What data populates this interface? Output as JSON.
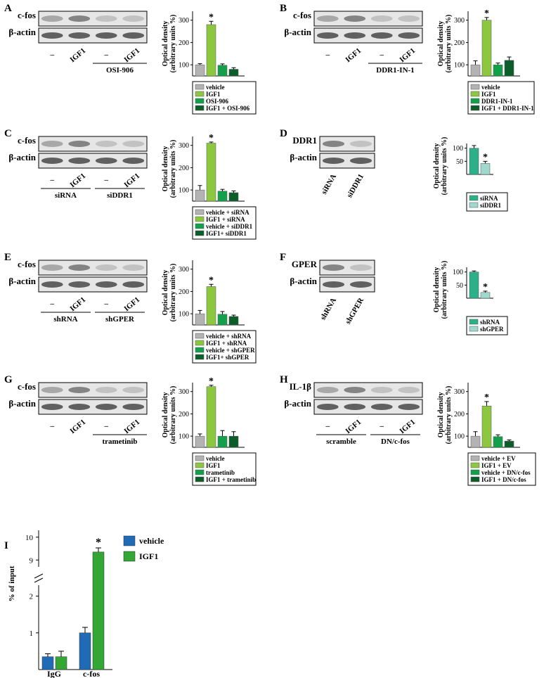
{
  "colors": {
    "vehicle_gray": "#b3b3b3",
    "igf1_lightgreen": "#8dc63f",
    "green": "#13a04a",
    "darkgreen": "#0b5e2a",
    "teal": "#2bb08a",
    "lightteal": "#9fd8cc",
    "blue": "#1f6bb6",
    "chip_green": "#33a634"
  },
  "ylabel_od": [
    "Optical density",
    "(arbitrary units %)"
  ],
  "star": "*",
  "minus": "–",
  "panels": [
    {
      "letter": "A",
      "target": "c-fos",
      "loading": "β-actin",
      "lanes": [
        "–",
        "IGF1",
        "–",
        "IGF1"
      ],
      "group_label": "OSI-906",
      "chart_data": {
        "type": "bar",
        "categories": [
          "vehicle",
          "IGF1",
          "OSI-906",
          "IGF1 + OSI-906"
        ],
        "values": [
          100,
          280,
          98,
          80
        ],
        "errors": [
          5,
          15,
          6,
          7
        ],
        "yticks": [
          100,
          200,
          300
        ],
        "ylim": [
          50,
          340
        ],
        "sig_index": 1
      },
      "legend": [
        "vehicle",
        "IGF1",
        "OSI-906",
        "IGF1 + OSI-906"
      ]
    },
    {
      "letter": "B",
      "target": "c-fos",
      "loading": "β-actin",
      "lanes": [
        "–",
        "IGF1",
        "–",
        "IGF1"
      ],
      "group_label": "DDR1-IN-1",
      "chart_data": {
        "type": "bar",
        "categories": [
          "vehicle",
          "IGF1",
          "DDR1-IN-1",
          "IGF1 + DDR1-IN-1"
        ],
        "values": [
          100,
          300,
          100,
          120
        ],
        "errors": [
          18,
          12,
          8,
          15
        ],
        "yticks": [
          100,
          200,
          300
        ],
        "ylim": [
          50,
          340
        ],
        "sig_index": 1
      },
      "legend": [
        "vehicle",
        "IGF1",
        "DDR1-IN-1",
        "IGF1 + DDR1-IN-1"
      ]
    },
    {
      "letter": "C",
      "target": "c-fos",
      "loading": "β-actin",
      "lanes": [
        "–",
        "IGF1",
        "–",
        "IGF1"
      ],
      "group_labels": [
        "siRNA",
        "siDDR1"
      ],
      "chart_data": {
        "type": "bar",
        "categories": [
          "vehicle + siRNA",
          "IGF1 + siRNA",
          "vehicle + siDDR1",
          "IGF1+ siDDR1"
        ],
        "values": [
          100,
          310,
          95,
          88
        ],
        "errors": [
          20,
          5,
          8,
          8
        ],
        "yticks": [
          100,
          200,
          300
        ],
        "ylim": [
          50,
          340
        ],
        "sig_index": 1
      },
      "legend": [
        "vehicle + siRNA",
        "IGF1 + siRNA",
        "vehicle + siDDR1",
        "IGF1+ siDDR1"
      ]
    },
    {
      "letter": "D",
      "target": "DDR1",
      "loading": "β-actin",
      "lanes": [
        "siRNA",
        "siDDR1"
      ],
      "chart_data": {
        "type": "bar",
        "categories": [
          "siRNA",
          "siDDR1"
        ],
        "values": [
          100,
          42
        ],
        "errors": [
          10,
          8
        ],
        "yticks": [
          50,
          100
        ],
        "ylim": [
          0,
          118
        ],
        "sig_index": 1
      },
      "legend": [
        "siRNA",
        "siDDR1"
      ]
    },
    {
      "letter": "E",
      "target": "c-fos",
      "loading": "β-actin",
      "lanes": [
        "–",
        "IGF1",
        "–",
        "IGF1"
      ],
      "group_labels": [
        "shRNA",
        "shGPER"
      ],
      "chart_data": {
        "type": "bar",
        "categories": [
          "vehicle + shRNA",
          "IGF1 + shRNA",
          "vehicle + shGPER",
          "IGF1+ shGPER"
        ],
        "values": [
          100,
          222,
          98,
          88
        ],
        "errors": [
          15,
          10,
          12,
          6
        ],
        "yticks": [
          100,
          200,
          300
        ],
        "ylim": [
          50,
          340
        ],
        "sig_index": 1
      },
      "legend": [
        "vehicle + shRNA",
        "IGF1 + shRNA",
        "vehicle + shGPER",
        "IGF1+ shGPER"
      ]
    },
    {
      "letter": "F",
      "target": "GPER",
      "loading": "β-actin",
      "lanes": [
        "shRNA",
        "shGPER"
      ],
      "chart_data": {
        "type": "bar",
        "categories": [
          "shRNA",
          "shGPER"
        ],
        "values": [
          100,
          22
        ],
        "errors": [
          4,
          5
        ],
        "yticks": [
          50,
          100
        ],
        "ylim": [
          0,
          118
        ],
        "sig_index": 1
      },
      "legend": [
        "shRNA",
        "shGPER"
      ]
    },
    {
      "letter": "G",
      "target": "c-fos",
      "loading": "β-actin",
      "lanes": [
        "–",
        "IGF1",
        "–",
        "IGF1"
      ],
      "group_label": "trametinib",
      "chart_data": {
        "type": "bar",
        "categories": [
          "vehicle",
          "IGF1",
          "trametinib",
          "IGF1 + trametinib"
        ],
        "values": [
          100,
          322,
          100,
          100
        ],
        "errors": [
          10,
          6,
          25,
          20
        ],
        "yticks": [
          100,
          200,
          300
        ],
        "ylim": [
          50,
          340
        ],
        "sig_index": 1
      },
      "legend": [
        "vehicle",
        "IGF1",
        "trametinib",
        "IGF1 + trametinib"
      ]
    },
    {
      "letter": "H",
      "target": "IL-1β",
      "loading": "β-actin",
      "lanes": [
        "–",
        "IGF1",
        "–",
        "IGF1"
      ],
      "group_labels": [
        "scramble",
        "DN/c-fos"
      ],
      "chart_data": {
        "type": "bar",
        "categories": [
          "vehicle + EV",
          "IGF1 + EV",
          "vehicle + DN/c-fos",
          "IGF1 + DN/c-fos"
        ],
        "values": [
          100,
          235,
          98,
          78
        ],
        "errors": [
          20,
          20,
          8,
          5
        ],
        "yticks": [
          100,
          200,
          300
        ],
        "ylim": [
          50,
          340
        ],
        "sig_index": 1
      },
      "legend": [
        "vehicle + EV",
        "IGF1 + EV",
        "vehicle + DN/c-fos",
        "IGF1 + DN/c-fos"
      ]
    }
  ],
  "panel_i": {
    "letter": "I",
    "ylabel": "% of input",
    "legend": [
      "vehicle",
      "IGF1"
    ],
    "chart_data": {
      "type": "bar",
      "categories": [
        "IgG",
        "c-fos"
      ],
      "series": [
        {
          "name": "vehicle",
          "values": [
            0.35,
            1.0
          ],
          "errors": [
            0.08,
            0.15
          ]
        },
        {
          "name": "IGF1",
          "values": [
            0.35,
            9.35
          ],
          "errors": [
            0.15,
            0.18
          ]
        }
      ],
      "yticks": [
        "1",
        "2",
        "9",
        "10"
      ],
      "axis_break": [
        2.3,
        8.7
      ],
      "sig": "c-fos IGF1"
    }
  }
}
